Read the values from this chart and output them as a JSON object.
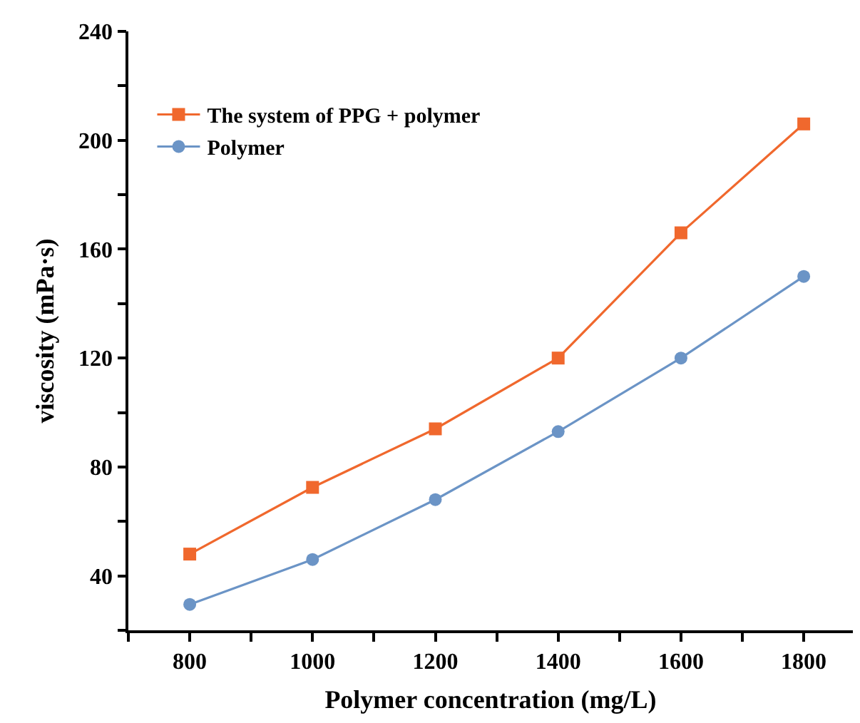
{
  "chart_data": {
    "type": "line",
    "xlabel": "Polymer concentration (mg/L)",
    "ylabel": "viscosity (mPa·s)",
    "x": [
      800,
      1000,
      1200,
      1400,
      1600,
      1800
    ],
    "series": [
      {
        "name": "The system of PPG + polymer",
        "color": "#f0682d",
        "marker": "square",
        "values": [
          48,
          72.5,
          94,
          120,
          166,
          206
        ]
      },
      {
        "name": "Polymer",
        "color": "#6b94c6",
        "marker": "circle",
        "values": [
          29.5,
          46,
          68,
          93,
          120,
          150
        ]
      }
    ],
    "xlim": [
      700,
      1880
    ],
    "xticks": [
      {
        "value": 700,
        "label": null
      },
      {
        "value": 800,
        "label": "800"
      },
      {
        "value": 900,
        "label": null
      },
      {
        "value": 1000,
        "label": "1000"
      },
      {
        "value": 1100,
        "label": null
      },
      {
        "value": 1200,
        "label": "1200"
      },
      {
        "value": 1300,
        "label": null
      },
      {
        "value": 1400,
        "label": "1400"
      },
      {
        "value": 1500,
        "label": null
      },
      {
        "value": 1600,
        "label": "1600"
      },
      {
        "value": 1700,
        "label": null
      },
      {
        "value": 1800,
        "label": "1800"
      }
    ],
    "ylim": [
      20,
      240
    ],
    "yticks": [
      {
        "value": 20,
        "label": null
      },
      40,
      {
        "value": 60,
        "label": null
      },
      80,
      {
        "value": 100,
        "label": null
      },
      120,
      {
        "value": 140,
        "label": null
      },
      160,
      {
        "value": 180,
        "label": null
      },
      200,
      {
        "value": 220,
        "label": null
      },
      240
    ],
    "grid": false,
    "legend": "top left",
    "line_style": "solid"
  }
}
